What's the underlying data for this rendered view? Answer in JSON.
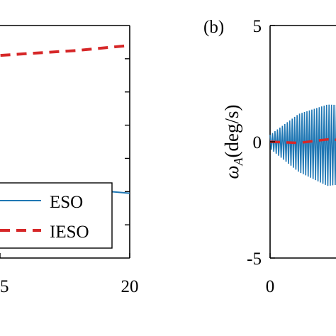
{
  "chart_data": [
    {
      "panel": "a",
      "type": "line",
      "xlim": [
        10,
        20
      ],
      "ylim": [
        0,
        7
      ],
      "xticks": [
        15,
        20
      ],
      "grid": false,
      "legend_position": "bottom-right",
      "series": [
        {
          "name": "ESO",
          "color": "#1f77b4",
          "style": "solid",
          "x": [
            10,
            12,
            14,
            15.5,
            17,
            18.5,
            20
          ],
          "y": [
            2.0,
            2.05,
            2.1,
            2.15,
            2.1,
            2.05,
            1.95
          ]
        },
        {
          "name": "IESO",
          "color": "#d62728",
          "style": "dashed",
          "x": [
            10,
            12,
            14,
            16,
            18,
            20
          ],
          "y": [
            5.85,
            5.95,
            6.05,
            6.15,
            6.25,
            6.4
          ]
        }
      ]
    },
    {
      "panel": "b",
      "type": "line",
      "panel_label": "(b)",
      "ylabel_symbol": "ω",
      "ylabel_sub": "A",
      "ylabel_unit": "(deg/s)",
      "xlim": [
        0,
        10
      ],
      "ylim": [
        -5,
        5
      ],
      "xticks": [
        0
      ],
      "yticks": [
        5,
        0,
        -5
      ],
      "grid": false,
      "series": [
        {
          "color": "#1f77b4",
          "style": "oscillation",
          "x": [
            0,
            0.5,
            1,
            1.5,
            2,
            2.5,
            3
          ],
          "upper": [
            0.3,
            1.2,
            1.6,
            1.55,
            1.4,
            1.3,
            1.25
          ],
          "lower": [
            -0.3,
            -1.3,
            -1.9,
            -1.75,
            -1.6,
            -1.5,
            -1.45
          ]
        },
        {
          "color": "#d62728",
          "style": "dashed",
          "x": [
            0,
            0.5,
            1,
            2,
            3
          ],
          "y": [
            0,
            -0.05,
            0.1,
            0,
            0
          ]
        }
      ]
    }
  ]
}
